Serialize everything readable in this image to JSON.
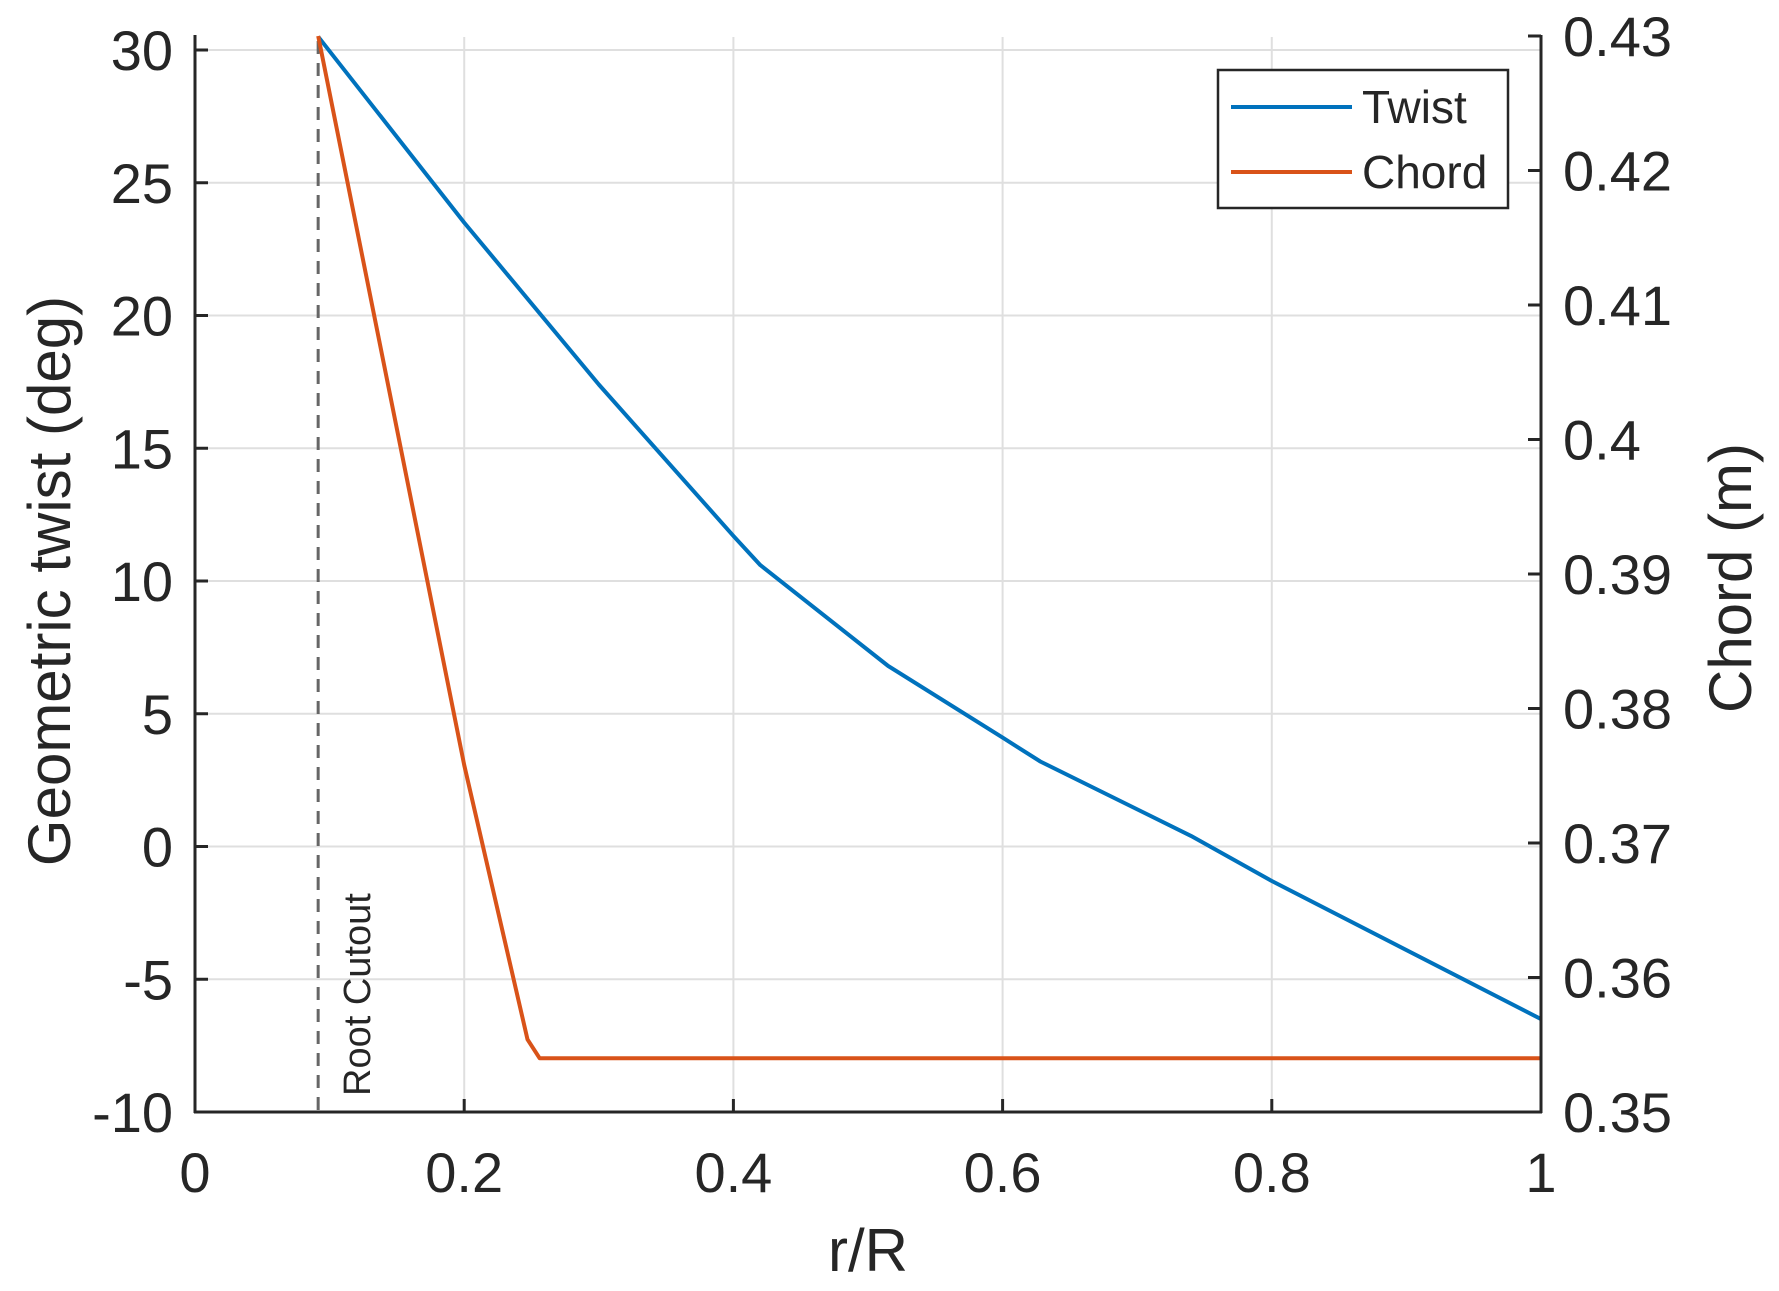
{
  "chart_data": {
    "type": "line",
    "title": "",
    "xlabel": "r/R",
    "ylabel": "Geometric twist (deg)",
    "ylabel_right": "Chord (m)",
    "xlim": [
      0,
      1
    ],
    "ylim": [
      -10,
      30.5
    ],
    "ylim_right": [
      0.35,
      0.43
    ],
    "grid": true,
    "legend_position": "northeast",
    "x_ticks": [
      0,
      0.2,
      0.4,
      0.6,
      0.8,
      1
    ],
    "x_tick_labels": [
      "0",
      "0.2",
      "0.4",
      "0.6",
      "0.8",
      "1"
    ],
    "y_ticks": [
      30,
      25,
      20,
      15,
      10,
      5,
      0,
      -5,
      -10
    ],
    "y_tick_labels": [
      "30",
      "25",
      "20",
      "15",
      "10",
      "5",
      "0",
      "-5",
      "-10"
    ],
    "y_right_ticks": [
      0.43,
      0.42,
      0.41,
      0.4,
      0.39,
      0.38,
      0.37,
      0.36,
      0.35
    ],
    "y_right_tick_labels": [
      "0.43",
      "0.42",
      "0.41",
      "0.4",
      "0.39",
      "0.38",
      "0.37",
      "0.36",
      "0.35"
    ],
    "series": [
      {
        "name": "Twist",
        "axis": "left",
        "color": "#0072BD",
        "x": [
          0.0915,
          0.2,
          0.3,
          0.4,
          0.42,
          0.515,
          0.6,
          0.628,
          0.74,
          0.8,
          1.0
        ],
        "values": [
          30.5,
          23.5,
          17.4,
          11.7,
          10.6,
          6.8,
          4.1,
          3.2,
          0.4,
          -1.3,
          -6.5
        ]
      },
      {
        "name": "Chord",
        "axis": "right",
        "color": "#D95319",
        "x": [
          0.0915,
          0.2,
          0.247,
          0.256,
          1.0
        ],
        "values": [
          0.43,
          0.3758,
          0.3554,
          0.354,
          0.354
        ]
      }
    ],
    "annotations": [
      {
        "type": "vertical-dashed-line",
        "x": 0.0915,
        "label": "Root Cutout",
        "color": "#666666"
      }
    ]
  },
  "legend": {
    "items": [
      {
        "label": "Twist",
        "color": "#0072BD"
      },
      {
        "label": "Chord",
        "color": "#D95319"
      }
    ]
  }
}
